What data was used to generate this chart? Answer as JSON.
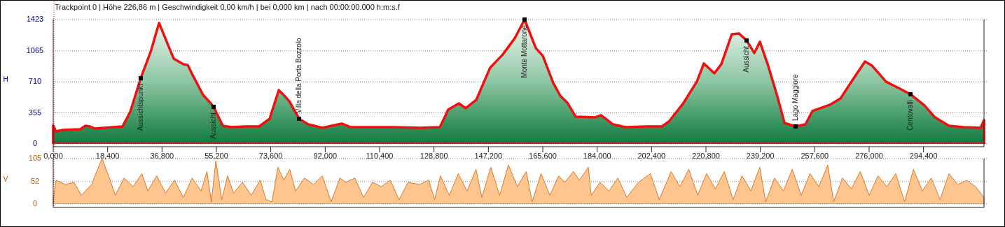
{
  "chart_data": [
    {
      "type": "area",
      "title": "Trackpoint 0  |  Höhe  226,86 m  |  Geschwindigkeit  0,00 km/h  |  bei  0,000 km  |  nach  00:00:00.000 h:m:s.f",
      "ylabel": "H",
      "xlim": [
        0,
        314.85
      ],
      "xticks": [
        {
          "value": 0,
          "label": "0,000"
        },
        {
          "value": 18.4,
          "label": "18,400"
        },
        {
          "value": 36.8,
          "label": "36,800"
        },
        {
          "value": 55.2,
          "label": "55,200"
        },
        {
          "value": 73.6,
          "label": "73,600"
        },
        {
          "value": 92,
          "label": "92,000"
        },
        {
          "value": 110.4,
          "label": "110,400"
        },
        {
          "value": 128.8,
          "label": "128,800"
        },
        {
          "value": 147.2,
          "label": "147,200"
        },
        {
          "value": 165.6,
          "label": "165,600"
        },
        {
          "value": 184,
          "label": "184,000"
        },
        {
          "value": 202.4,
          "label": "202,400"
        },
        {
          "value": 220.8,
          "label": "220,800"
        },
        {
          "value": 239.2,
          "label": "239,200"
        },
        {
          "value": 257.6,
          "label": "257,600"
        },
        {
          "value": 276,
          "label": "276,000"
        },
        {
          "value": 294.4,
          "label": "294,400"
        }
      ],
      "ylim": [
        0,
        1423
      ],
      "yticks": [
        0,
        355,
        710,
        1065,
        1423
      ],
      "grid": "y",
      "ref_lines": [
        {
          "axis": "x",
          "value": 0,
          "color": "#cc0000",
          "line_style": "dotted"
        }
      ],
      "series": [
        {
          "color": "#ee1111",
          "x": [
            0,
            0.95,
            3.3,
            9.2,
            10.9,
            12.3,
            14,
            23.45,
            26.05,
            29.6,
            32.9,
            35.8,
            38.4,
            40.75,
            42.4,
            44.05,
            45.5,
            47.1,
            50.7,
            53.1,
            54.25,
            57.35,
            60.2,
            64.9,
            69.65,
            73.2,
            76.3,
            77.95,
            79.85,
            83.15,
            86.25,
            91,
            97.6,
            100.45,
            114.65,
            124.1,
            130.8,
            133.6,
            137.2,
            139.55,
            143.1,
            147.8,
            152.1,
            156.1,
            159.45,
            163.25,
            165.6,
            169.15,
            171.5,
            173.9,
            176.7,
            183.4,
            185.3,
            189.3,
            193.55,
            201.1,
            205.9,
            208.25,
            212.95,
            217.7,
            220.1,
            223.65,
            226,
            229.55,
            231.95,
            234.55,
            237.15,
            239.05,
            241.9,
            244.95,
            247.35,
            251.1,
            254.45,
            256.8,
            262.75,
            266.3,
            269.85,
            274.6,
            276.95,
            281.7,
            286.4,
            290,
            294.7,
            298.25,
            303,
            307.75,
            313.7,
            314.85
          ],
          "values": [
            209,
            144,
            160,
            168,
            208,
            200,
            176,
            200,
            368,
            752,
            1048,
            1384,
            1168,
            976,
            944,
            912,
            904,
            792,
            560,
            472,
            424,
            208,
            192,
            200,
            200,
            288,
            616,
            560,
            488,
            288,
            224,
            184,
            232,
            192,
            192,
            184,
            192,
            392,
            464,
            408,
            504,
            872,
            1024,
            1208,
            1423,
            1096,
            1008,
            696,
            552,
            472,
            312,
            304,
            328,
            224,
            192,
            200,
            200,
            256,
            456,
            712,
            920,
            808,
            912,
            1256,
            1264,
            1184,
            1040,
            1168,
            888,
            544,
            240,
            200,
            224,
            376,
            448,
            520,
            704,
            944,
            896,
            712,
            632,
            568,
            440,
            304,
            208,
            192,
            184,
            272
          ]
        }
      ],
      "annotations": [
        {
          "text": "Aussichtspunkt",
          "x": 29.6,
          "y": 752
        },
        {
          "text": "Aussicht",
          "x": 54.25,
          "y": 424
        },
        {
          "text": "Villa della Porta Bozzolo",
          "x": 83.15,
          "y": 288
        },
        {
          "text": "Monte Mottarone",
          "x": 159.45,
          "y": 1423
        },
        {
          "text": "Aussicht",
          "x": 234.55,
          "y": 1184
        },
        {
          "text": "Lago Maggiore",
          "x": 251.1,
          "y": 200
        },
        {
          "text": "Centovalli",
          "x": 290,
          "y": 568
        }
      ]
    },
    {
      "type": "area",
      "ylabel": "V",
      "xlim": [
        0,
        314.85
      ],
      "ylim": [
        0,
        105
      ],
      "yticks": [
        0,
        52,
        105
      ],
      "grid": "y",
      "tick_labels": "y",
      "ref_lines": [
        {
          "axis": "x",
          "value": 0,
          "color": "#cc0000",
          "line_style": "dotted"
        }
      ],
      "series": [
        {
          "color": "#d9772b",
          "x": [
            0,
            1,
            4,
            7,
            9.5,
            13,
            15,
            16.5,
            19,
            21,
            24,
            27,
            30,
            32,
            35,
            38,
            41,
            44,
            47,
            50,
            52,
            53.5,
            55,
            57,
            59,
            61,
            64,
            67,
            70,
            72,
            74,
            76,
            78,
            80,
            82,
            85,
            88,
            91,
            94,
            97,
            99,
            102,
            105,
            108,
            111,
            114,
            117,
            120,
            124,
            127,
            129,
            131,
            134,
            137,
            140,
            143,
            145,
            148,
            151,
            154,
            157,
            160,
            162,
            165,
            168,
            171,
            173,
            176,
            178,
            181,
            182,
            185,
            188,
            191,
            194,
            198,
            202,
            205,
            209,
            212,
            215,
            218,
            221,
            224,
            227,
            230,
            233,
            236,
            239,
            241,
            244,
            247,
            250,
            253,
            256,
            259,
            262,
            264,
            267,
            270,
            273,
            276,
            279,
            282,
            285,
            288,
            291,
            294,
            297,
            300,
            303,
            306,
            309,
            312,
            314.85
          ],
          "values": [
            10,
            55,
            45,
            50,
            20,
            45,
            80,
            105,
            60,
            20,
            60,
            40,
            70,
            30,
            65,
            25,
            55,
            15,
            60,
            30,
            75,
            5,
            100,
            10,
            65,
            25,
            50,
            20,
            55,
            10,
            5,
            85,
            55,
            80,
            30,
            60,
            45,
            65,
            5,
            60,
            50,
            60,
            15,
            50,
            40,
            55,
            10,
            50,
            45,
            55,
            10,
            65,
            20,
            70,
            30,
            80,
            15,
            85,
            20,
            90,
            40,
            75,
            5,
            70,
            20,
            65,
            50,
            75,
            55,
            85,
            20,
            50,
            30,
            60,
            15,
            50,
            70,
            10,
            75,
            40,
            80,
            20,
            70,
            35,
            75,
            10,
            65,
            30,
            85,
            5,
            60,
            30,
            80,
            20,
            70,
            40,
            90,
            5,
            60,
            35,
            75,
            20,
            65,
            40,
            70,
            5,
            80,
            30,
            60,
            10,
            70,
            45,
            55,
            40,
            15
          ]
        }
      ]
    }
  ]
}
